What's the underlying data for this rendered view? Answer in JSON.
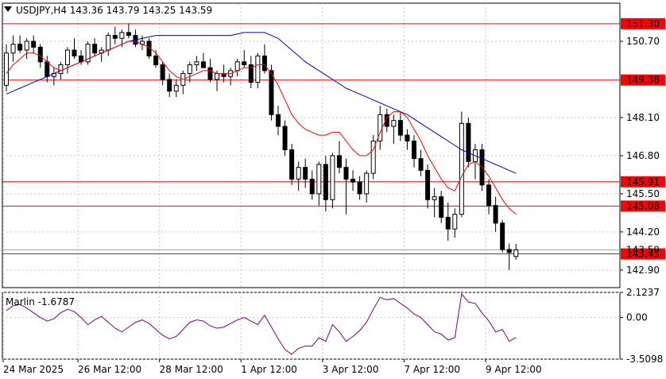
{
  "header": {
    "symbol_line": "USDJPY,H4  143.36 143.79 143.25 143.59",
    "marlin_label": "Marlin -1.6787"
  },
  "colors": {
    "up": "#ffffff",
    "down": "#000000",
    "level": "#ff0000",
    "ma_fast": "#ff0000",
    "ma_slow": "#0000cc",
    "oscillator": "#800080",
    "grid": "#c8c8c8",
    "price_tag_bg": "#ff0000"
  },
  "chart_data": [
    {
      "type": "candlestick",
      "title": "USDJPY,H4",
      "ylim": [
        142.3,
        152.0
      ],
      "y_ticks": [
        "150.70",
        "148.10",
        "146.80",
        "145.50",
        "144.20",
        "142.90"
      ],
      "x_ticks": [
        "24 Mar 2025",
        "26 Mar 12:00",
        "28 Mar 12:00",
        "1 Apr 12:00",
        "3 Apr 12:00",
        "7 Apr 12:00",
        "9 Apr 12:00"
      ],
      "levels": [
        {
          "value": 151.3,
          "label": "151.30"
        },
        {
          "value": 149.38,
          "label": "149.38"
        },
        {
          "value": 145.91,
          "label": "145.91"
        },
        {
          "value": 145.08,
          "label": "145.08"
        },
        {
          "value": 143.45,
          "label": "143.45"
        }
      ],
      "current_price": {
        "value": 143.59,
        "label": "143.59"
      },
      "ohlc": [
        [
          149.2,
          150.6,
          149.0,
          150.3
        ],
        [
          150.3,
          150.9,
          150.0,
          150.6
        ],
        [
          150.6,
          150.9,
          150.3,
          150.4
        ],
        [
          150.4,
          150.8,
          150.1,
          150.7
        ],
        [
          150.7,
          150.9,
          150.3,
          150.5
        ],
        [
          150.5,
          150.6,
          149.8,
          150.0
        ],
        [
          150.0,
          150.2,
          149.3,
          149.5
        ],
        [
          149.5,
          149.8,
          149.2,
          149.6
        ],
        [
          149.6,
          150.0,
          149.4,
          149.9
        ],
        [
          149.9,
          150.5,
          149.6,
          150.4
        ],
        [
          150.4,
          150.8,
          150.1,
          150.2
        ],
        [
          150.2,
          150.4,
          149.9,
          150.0
        ],
        [
          150.0,
          150.7,
          149.9,
          150.6
        ],
        [
          150.6,
          150.8,
          150.2,
          150.3
        ],
        [
          150.3,
          150.5,
          150.0,
          150.4
        ],
        [
          150.4,
          151.0,
          150.2,
          150.9
        ],
        [
          150.9,
          151.2,
          150.6,
          150.8
        ],
        [
          150.8,
          151.1,
          150.5,
          151.0
        ],
        [
          151.0,
          151.3,
          150.8,
          150.9
        ],
        [
          150.9,
          151.1,
          150.5,
          150.6
        ],
        [
          150.6,
          150.9,
          150.4,
          150.7
        ],
        [
          150.7,
          150.8,
          150.1,
          150.2
        ],
        [
          150.2,
          150.4,
          149.8,
          149.9
        ],
        [
          149.9,
          150.0,
          149.2,
          149.4
        ],
        [
          149.4,
          149.6,
          148.8,
          149.0
        ],
        [
          149.0,
          149.4,
          148.8,
          149.2
        ],
        [
          149.2,
          149.7,
          148.9,
          149.6
        ],
        [
          149.6,
          150.0,
          149.3,
          149.9
        ],
        [
          149.9,
          150.2,
          149.7,
          150.0
        ],
        [
          150.0,
          150.3,
          149.8,
          149.8
        ],
        [
          149.8,
          150.1,
          149.3,
          149.4
        ],
        [
          149.4,
          149.7,
          149.0,
          149.6
        ],
        [
          149.6,
          149.9,
          149.3,
          149.5
        ],
        [
          149.5,
          149.8,
          149.2,
          149.7
        ],
        [
          149.7,
          150.1,
          149.5,
          150.0
        ],
        [
          150.0,
          150.4,
          149.8,
          149.9
        ],
        [
          149.9,
          150.2,
          149.1,
          149.3
        ],
        [
          149.3,
          150.3,
          149.1,
          150.2
        ],
        [
          150.2,
          150.6,
          149.6,
          149.7
        ],
        [
          149.7,
          149.9,
          148.0,
          148.2
        ],
        [
          148.2,
          148.5,
          147.5,
          147.8
        ],
        [
          147.8,
          148.0,
          146.8,
          147.0
        ],
        [
          147.0,
          147.2,
          145.8,
          146.0
        ],
        [
          146.0,
          146.6,
          145.6,
          146.4
        ],
        [
          146.4,
          146.7,
          145.7,
          146.0
        ],
        [
          146.0,
          146.3,
          145.3,
          145.5
        ],
        [
          145.5,
          146.6,
          145.1,
          146.5
        ],
        [
          146.5,
          146.8,
          144.9,
          145.3
        ],
        [
          145.3,
          146.9,
          145.0,
          146.8
        ],
        [
          146.8,
          147.3,
          146.2,
          146.4
        ],
        [
          146.4,
          146.7,
          144.8,
          146.0
        ],
        [
          146.0,
          146.3,
          145.6,
          145.9
        ],
        [
          145.9,
          146.1,
          145.3,
          145.5
        ],
        [
          145.5,
          146.3,
          145.2,
          146.2
        ],
        [
          146.2,
          147.5,
          146.0,
          147.3
        ],
        [
          147.3,
          148.5,
          147.0,
          148.2
        ],
        [
          148.2,
          148.4,
          147.6,
          147.8
        ],
        [
          147.8,
          148.2,
          147.2,
          148.0
        ],
        [
          148.0,
          148.3,
          147.3,
          147.5
        ],
        [
          147.5,
          147.7,
          147.0,
          147.3
        ],
        [
          147.3,
          147.5,
          146.4,
          146.7
        ],
        [
          146.7,
          147.0,
          146.1,
          146.3
        ],
        [
          146.3,
          146.5,
          145.0,
          145.3
        ],
        [
          145.3,
          145.7,
          144.7,
          145.4
        ],
        [
          145.4,
          145.6,
          144.5,
          144.7
        ],
        [
          144.7,
          145.2,
          143.9,
          144.3
        ],
        [
          144.3,
          145.0,
          144.0,
          144.8
        ],
        [
          144.8,
          148.3,
          144.7,
          147.9
        ],
        [
          147.9,
          148.1,
          146.4,
          146.6
        ],
        [
          146.6,
          147.2,
          146.0,
          147.0
        ],
        [
          147.0,
          147.2,
          145.6,
          145.8
        ],
        [
          145.8,
          146.0,
          144.8,
          145.1
        ],
        [
          145.1,
          145.4,
          144.2,
          144.5
        ],
        [
          144.5,
          144.6,
          143.5,
          143.6
        ],
        [
          143.6,
          143.8,
          142.9,
          143.5
        ],
        [
          143.36,
          143.79,
          143.25,
          143.59
        ]
      ],
      "ma_fast": [
        149.6,
        149.9,
        150.1,
        150.3,
        150.3,
        150.2,
        150.0,
        149.8,
        149.7,
        149.8,
        149.9,
        150.0,
        150.1,
        150.2,
        150.3,
        150.4,
        150.5,
        150.6,
        150.7,
        150.7,
        150.6,
        150.5,
        150.3,
        150.0,
        149.7,
        149.5,
        149.4,
        149.5,
        149.6,
        149.7,
        149.7,
        149.6,
        149.6,
        149.6,
        149.7,
        149.8,
        149.8,
        149.9,
        149.9,
        149.6,
        149.2,
        148.7,
        148.2,
        147.9,
        147.7,
        147.6,
        147.5,
        147.5,
        147.6,
        147.6,
        147.3,
        147.0,
        146.8,
        146.8,
        147.0,
        147.6,
        148.1,
        148.3,
        148.3,
        148.1,
        147.7,
        147.3,
        146.8,
        146.4,
        146.0,
        145.7,
        145.6,
        146.1,
        146.5,
        146.6,
        146.4,
        146.1,
        145.7,
        145.3,
        145.0,
        144.8
      ],
      "ma_slow": [
        148.9,
        149.0,
        149.1,
        149.2,
        149.3,
        149.4,
        149.5,
        149.6,
        149.7,
        149.8,
        149.9,
        150.0,
        150.1,
        150.2,
        150.3,
        150.4,
        150.5,
        150.6,
        150.7,
        150.75,
        150.8,
        150.85,
        150.9,
        150.9,
        150.9,
        150.9,
        150.9,
        150.9,
        150.9,
        150.9,
        150.9,
        150.9,
        150.9,
        150.9,
        150.95,
        151.0,
        151.0,
        151.0,
        151.0,
        150.9,
        150.8,
        150.6,
        150.4,
        150.2,
        150.0,
        149.85,
        149.7,
        149.55,
        149.4,
        149.25,
        149.1,
        149.0,
        148.9,
        148.8,
        148.7,
        148.6,
        148.5,
        148.4,
        148.3,
        148.2,
        148.05,
        147.9,
        147.75,
        147.6,
        147.45,
        147.3,
        147.15,
        147.0,
        146.9,
        146.8,
        146.7,
        146.6,
        146.5,
        146.4,
        146.3,
        146.2
      ]
    },
    {
      "type": "line",
      "title": "Marlin -1.6787",
      "ylim": [
        -3.5098,
        2.1237
      ],
      "y_ticks": [
        "2.1237",
        "0.00",
        "-3.5098"
      ],
      "series": [
        {
          "values": [
            0.6,
            1.0,
            1.1,
            0.8,
            0.4,
            0.0,
            -0.3,
            -0.1,
            0.4,
            0.7,
            0.5,
            0.0,
            -0.6,
            -0.2,
            0.1,
            -0.4,
            -0.9,
            -1.2,
            -0.8,
            -0.4,
            -0.2,
            -0.5,
            -1.0,
            -1.5,
            -1.8,
            -1.6,
            -1.0,
            -0.4,
            -0.2,
            -0.3,
            -0.7,
            -0.9,
            -0.8,
            -0.5,
            -0.2,
            0.0,
            -0.3,
            -0.6,
            0.2,
            -0.8,
            -1.8,
            -2.7,
            -3.1,
            -2.6,
            -2.4,
            -2.4,
            -1.7,
            -2.0,
            -0.6,
            -1.2,
            -2.0,
            -1.6,
            -1.1,
            -0.4,
            0.7,
            1.7,
            1.5,
            1.6,
            1.2,
            0.8,
            0.3,
            0.0,
            -0.6,
            -1.2,
            -1.4,
            -1.9,
            -1.7,
            2.0,
            1.3,
            1.2,
            0.4,
            -0.3,
            -1.2,
            -1.0,
            -2.0,
            -1.68
          ]
        }
      ]
    }
  ]
}
